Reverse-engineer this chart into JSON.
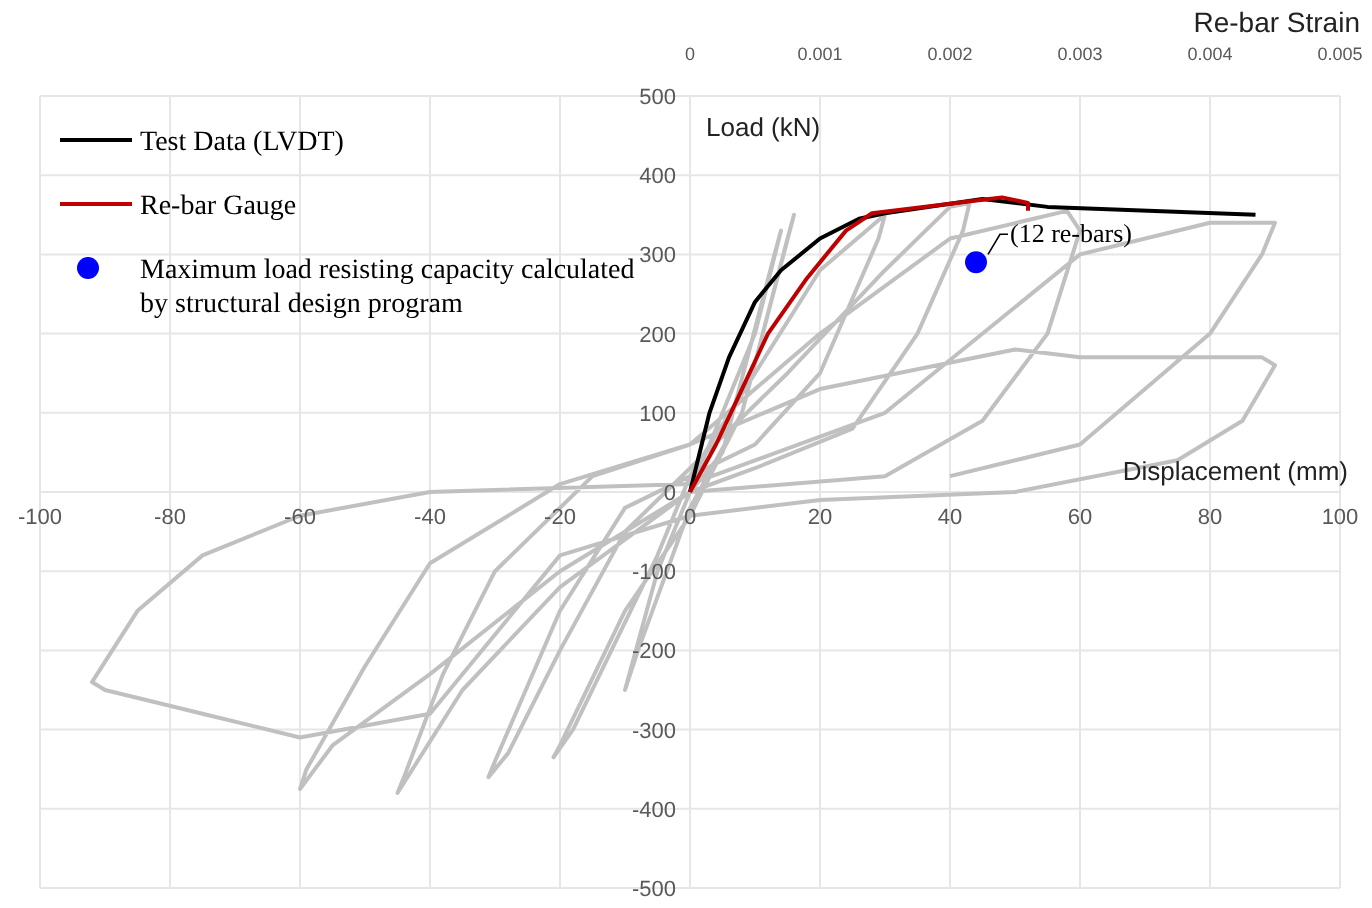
{
  "chart_data": {
    "type": "line",
    "xlabel": "Displacement (mm)",
    "ylabel": "Load (kN)",
    "x2label": "Re-bar Strain",
    "xlim": [
      -100,
      100
    ],
    "xticks": [
      -100,
      -80,
      -60,
      -40,
      -20,
      0,
      20,
      40,
      60,
      80,
      100
    ],
    "ylim": [
      -500,
      500
    ],
    "yticks": [
      -500,
      -400,
      -300,
      -200,
      -100,
      0,
      100,
      200,
      300,
      400,
      500
    ],
    "x2lim": [
      -0.005,
      0.005
    ],
    "x2ticks": [
      0,
      0.001,
      0.002,
      0.003,
      0.004,
      0.005
    ],
    "grid": true,
    "legend": "top left",
    "series": [
      {
        "color": "#c0c0c0",
        "x": [
          0,
          10,
          14,
          13,
          5,
          0,
          -5,
          -10,
          -8,
          0,
          8,
          16,
          15,
          8,
          0,
          -10,
          -20,
          -21,
          -18,
          -5,
          0,
          10,
          20,
          30,
          29,
          20,
          10,
          0,
          -10,
          -20,
          -30,
          -31,
          -28,
          -20,
          -10,
          0,
          15,
          30,
          40,
          43,
          42,
          35,
          25,
          10,
          0,
          -20,
          -35,
          -45,
          -44,
          -38,
          -30,
          -15,
          0,
          20,
          40,
          58,
          60,
          55,
          45,
          30,
          0,
          -20,
          -40,
          -55,
          -60,
          -59,
          -50,
          -40,
          -20,
          0,
          20,
          50,
          60,
          70,
          88,
          90,
          85,
          75,
          50,
          20,
          0,
          -20,
          -40,
          -60,
          -75,
          -90,
          -92,
          -85,
          -75,
          -60,
          -40,
          0,
          30,
          60,
          80,
          90,
          88,
          80,
          60,
          40
        ],
        "values": [
          0,
          200,
          330,
          300,
          50,
          0,
          -100,
          -250,
          -200,
          -20,
          100,
          350,
          320,
          100,
          -30,
          -150,
          -320,
          -335,
          -300,
          -80,
          20,
          150,
          280,
          350,
          320,
          150,
          60,
          20,
          -20,
          -150,
          -340,
          -360,
          -330,
          -200,
          -50,
          30,
          150,
          280,
          360,
          365,
          330,
          200,
          80,
          30,
          0,
          -120,
          -250,
          -380,
          -360,
          -230,
          -100,
          20,
          60,
          200,
          320,
          355,
          330,
          200,
          90,
          20,
          0,
          -100,
          -230,
          -320,
          -375,
          -350,
          -220,
          -90,
          10,
          60,
          130,
          180,
          170,
          170,
          170,
          160,
          90,
          40,
          0,
          -10,
          -30,
          -80,
          -280,
          -310,
          -280,
          -250,
          -240,
          -150,
          -80,
          -30,
          0,
          10,
          100,
          300,
          340,
          340,
          300,
          200,
          60,
          20
        ]
      },
      {
        "name": "Test Data (LVDT)",
        "color": "#000000",
        "x": [
          0,
          3,
          6,
          10,
          14,
          20,
          26,
          30,
          45,
          55,
          87
        ],
        "values": [
          0,
          100,
          170,
          240,
          280,
          320,
          345,
          352,
          370,
          360,
          350
        ]
      },
      {
        "name": "Re-bar Gauge",
        "color": "#c00000",
        "axis": "x2",
        "x": [
          0,
          0.0002,
          0.0004,
          0.0006,
          0.0009,
          0.0012,
          0.0014,
          0.0023,
          0.0024,
          0.0026,
          0.0026
        ],
        "values": [
          0,
          60,
          130,
          200,
          270,
          330,
          352,
          370,
          372,
          365,
          355
        ]
      },
      {
        "type": "scatter",
        "name": "Maximum load resisting capacity calculated by structural design program",
        "color": "#0000ff",
        "marker": "circle",
        "x": [
          44
        ],
        "values": [
          290
        ]
      }
    ],
    "annotations": [
      {
        "text": "(12 re-bars)",
        "x": 44,
        "y": 290
      }
    ]
  }
}
